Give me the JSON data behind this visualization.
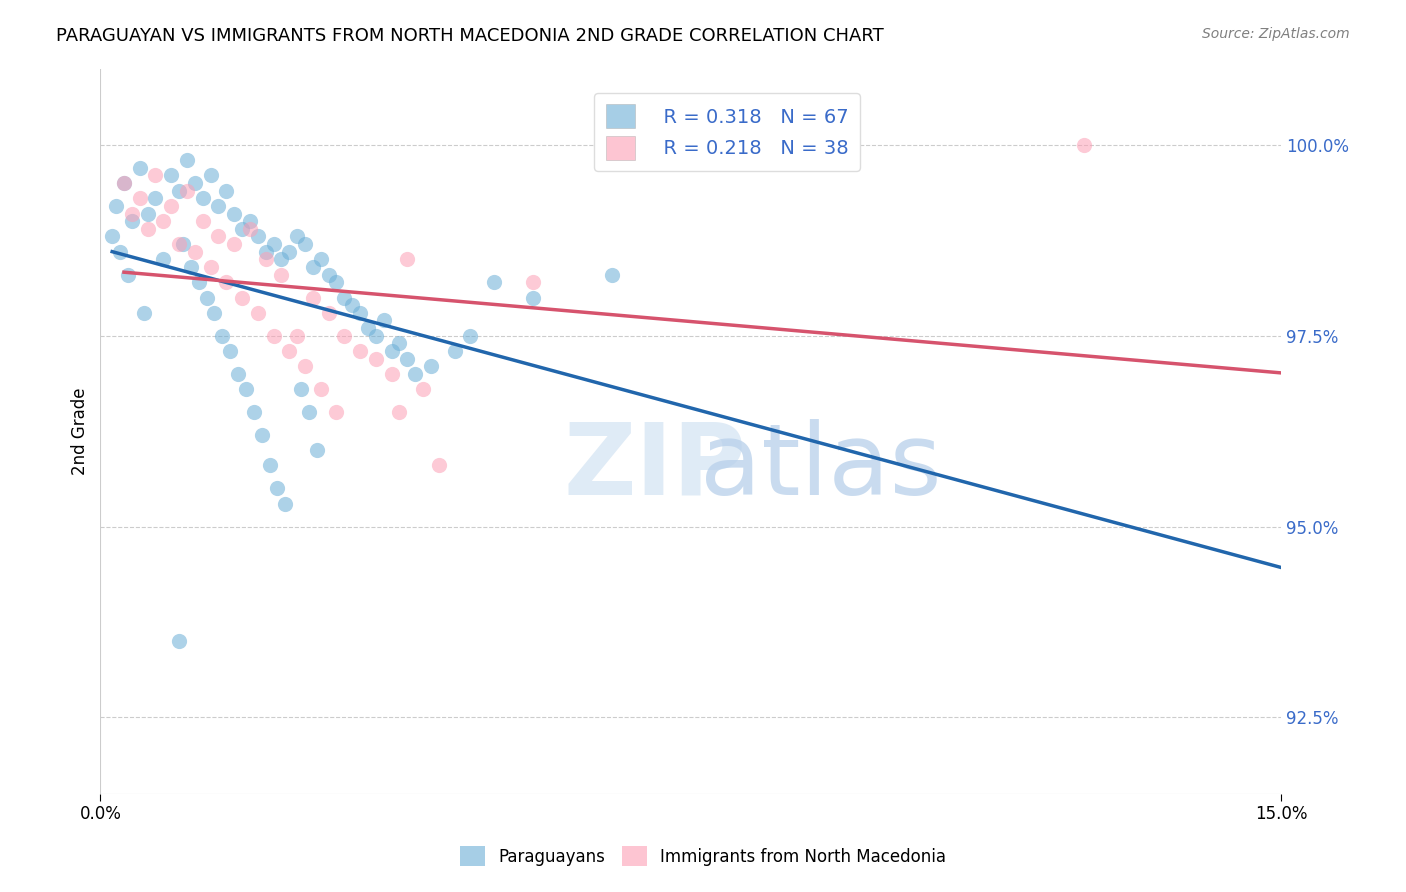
{
  "title": "PARAGUAYAN VS IMMIGRANTS FROM NORTH MACEDONIA 2ND GRADE CORRELATION CHART",
  "source": "Source: ZipAtlas.com",
  "ylabel": "2nd Grade",
  "xlim": [
    0.0,
    15.0
  ],
  "ylim": [
    91.5,
    101.0
  ],
  "yticks": [
    92.5,
    95.0,
    97.5,
    100.0
  ],
  "ytick_labels": [
    "92.5%",
    "95.0%",
    "97.5%",
    "100.0%"
  ],
  "blue_R": 0.318,
  "blue_N": 67,
  "pink_R": 0.218,
  "pink_N": 38,
  "blue_color": "#6baed6",
  "pink_color": "#fc9fb5",
  "blue_line_color": "#2166ac",
  "pink_line_color": "#d6536d",
  "legend_color": "#3a6bc9",
  "blue_scatter_x": [
    0.3,
    0.5,
    0.7,
    0.9,
    1.0,
    1.1,
    1.2,
    1.3,
    1.4,
    1.5,
    1.6,
    1.7,
    1.8,
    1.9,
    2.0,
    2.1,
    2.2,
    2.3,
    2.4,
    2.5,
    2.6,
    2.7,
    2.8,
    2.9,
    3.0,
    3.1,
    3.2,
    3.3,
    3.4,
    3.5,
    3.6,
    3.7,
    3.8,
    3.9,
    4.0,
    4.2,
    4.5,
    4.7,
    5.0,
    5.5,
    6.5,
    0.2,
    0.4,
    0.6,
    0.8,
    1.05,
    1.15,
    1.25,
    1.35,
    1.45,
    1.55,
    1.65,
    1.75,
    1.85,
    1.95,
    2.05,
    2.15,
    2.25,
    2.35,
    2.55,
    2.65,
    2.75,
    0.15,
    0.25,
    0.35,
    0.55,
    1.0
  ],
  "blue_scatter_y": [
    99.5,
    99.7,
    99.3,
    99.6,
    99.4,
    99.8,
    99.5,
    99.3,
    99.6,
    99.2,
    99.4,
    99.1,
    98.9,
    99.0,
    98.8,
    98.6,
    98.7,
    98.5,
    98.6,
    98.8,
    98.7,
    98.4,
    98.5,
    98.3,
    98.2,
    98.0,
    97.9,
    97.8,
    97.6,
    97.5,
    97.7,
    97.3,
    97.4,
    97.2,
    97.0,
    97.1,
    97.3,
    97.5,
    98.2,
    98.0,
    98.3,
    99.2,
    99.0,
    99.1,
    98.5,
    98.7,
    98.4,
    98.2,
    98.0,
    97.8,
    97.5,
    97.3,
    97.0,
    96.8,
    96.5,
    96.2,
    95.8,
    95.5,
    95.3,
    96.8,
    96.5,
    96.0,
    98.8,
    98.6,
    98.3,
    97.8,
    93.5
  ],
  "pink_scatter_x": [
    0.3,
    0.5,
    0.7,
    0.9,
    1.1,
    1.3,
    1.5,
    1.7,
    1.9,
    2.1,
    2.3,
    2.5,
    2.7,
    2.9,
    3.1,
    3.3,
    3.5,
    3.7,
    3.9,
    4.1,
    4.3,
    5.5,
    0.4,
    0.6,
    0.8,
    1.0,
    1.2,
    1.4,
    1.6,
    1.8,
    2.0,
    2.2,
    2.4,
    2.6,
    2.8,
    3.0,
    3.8,
    12.5
  ],
  "pink_scatter_y": [
    99.5,
    99.3,
    99.6,
    99.2,
    99.4,
    99.0,
    98.8,
    98.7,
    98.9,
    98.5,
    98.3,
    97.5,
    98.0,
    97.8,
    97.5,
    97.3,
    97.2,
    97.0,
    98.5,
    96.8,
    95.8,
    98.2,
    99.1,
    98.9,
    99.0,
    98.7,
    98.6,
    98.4,
    98.2,
    98.0,
    97.8,
    97.5,
    97.3,
    97.1,
    96.8,
    96.5,
    96.5,
    100.0
  ]
}
